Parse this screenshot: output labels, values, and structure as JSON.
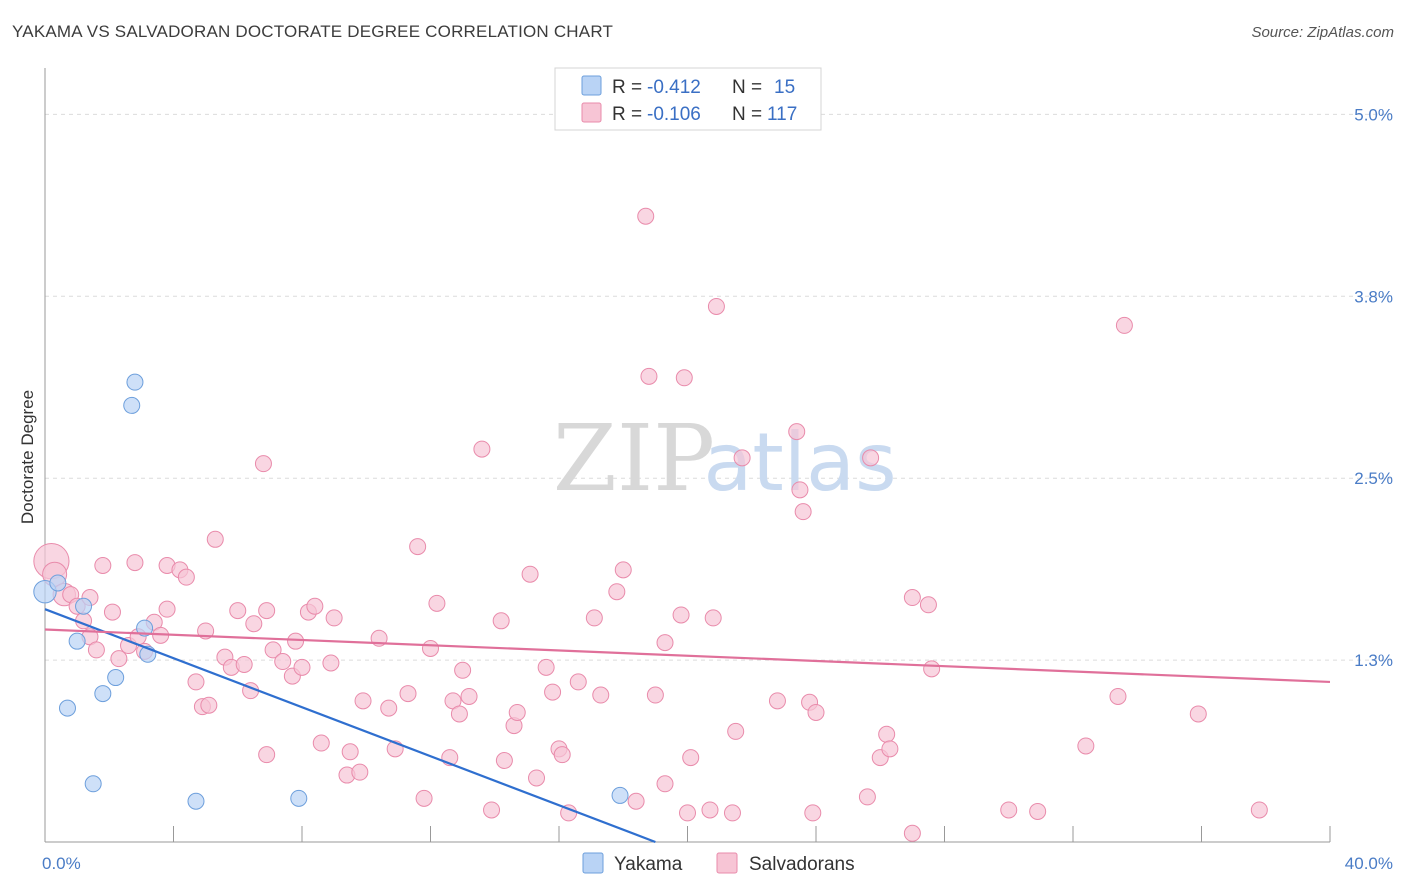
{
  "title": "YAKAMA VS SALVADORAN DOCTORATE DEGREE CORRELATION CHART",
  "source": "Source: ZipAtlas.com",
  "watermark": {
    "zip": "ZIP",
    "atlas": "atlas"
  },
  "colors": {
    "yakama_fill": "#b9d3f5",
    "yakama_stroke": "#6d9fdc",
    "yakama_line": "#2f6fcf",
    "salv_fill": "#f7c5d5",
    "salv_stroke": "#e98bab",
    "salv_line": "#e0709a",
    "grid": "#dcdcdc",
    "axis": "#999999",
    "tick_text": "#4a7cc6"
  },
  "legend": {
    "items": [
      {
        "name": "Yakama",
        "r_label": "R =",
        "r_value": "-0.412",
        "n_label": "N =",
        "n_value": "15"
      },
      {
        "name": "Salvadorans",
        "r_label": "R =",
        "r_value": "-0.106",
        "n_label": "N =",
        "n_value": "117"
      }
    ]
  },
  "chart_data": {
    "type": "scatter",
    "title": "YAKAMA VS SALVADORAN DOCTORATE DEGREE CORRELATION CHART",
    "xlabel": "",
    "ylabel": "Doctorate Degree",
    "xlim": [
      0,
      40
    ],
    "ylim": [
      0,
      5.25
    ],
    "x_tick_labels": [
      "0.0%",
      "40.0%"
    ],
    "y_ticks": [
      1.25,
      2.5,
      3.75,
      5.0
    ],
    "y_tick_labels": [
      "1.3%",
      "2.5%",
      "3.8%",
      "5.0%"
    ],
    "grid": true,
    "legend_position": "top-center",
    "series": [
      {
        "name": "Yakama",
        "r": -0.412,
        "n": 15,
        "trend": {
          "x0": 0.0,
          "y0": 1.6,
          "x1": 19.0,
          "y1": 0.0
        },
        "points": [
          [
            0.0,
            1.72,
            1.4
          ],
          [
            0.4,
            1.78,
            1
          ],
          [
            1.2,
            1.62,
            1
          ],
          [
            1.0,
            1.38,
            1
          ],
          [
            0.7,
            0.92,
            1
          ],
          [
            1.8,
            1.02,
            1
          ],
          [
            2.2,
            1.13,
            1
          ],
          [
            2.7,
            3.0,
            1
          ],
          [
            2.8,
            3.16,
            1
          ],
          [
            3.1,
            1.47,
            1
          ],
          [
            3.2,
            1.29,
            1
          ],
          [
            1.5,
            0.4,
            1
          ],
          [
            4.7,
            0.28,
            1
          ],
          [
            7.9,
            0.3,
            1
          ],
          [
            17.9,
            0.32,
            1
          ]
        ]
      },
      {
        "name": "Salvadorans",
        "r": -0.106,
        "n": 117,
        "trend": {
          "x0": 0.0,
          "y0": 1.46,
          "x1": 40.0,
          "y1": 1.1
        },
        "points": [
          [
            0.2,
            1.93,
            2.2
          ],
          [
            0.3,
            1.84,
            1.5
          ],
          [
            0.6,
            1.7,
            1.4
          ],
          [
            0.8,
            1.7,
            1
          ],
          [
            1.0,
            1.62,
            1
          ],
          [
            1.2,
            1.52,
            1
          ],
          [
            1.4,
            1.41,
            1
          ],
          [
            1.4,
            1.68,
            1
          ],
          [
            1.6,
            1.32,
            1
          ],
          [
            1.8,
            1.9,
            1
          ],
          [
            2.1,
            1.58,
            1
          ],
          [
            2.3,
            1.26,
            1
          ],
          [
            2.6,
            1.35,
            1
          ],
          [
            2.8,
            1.92,
            1
          ],
          [
            2.9,
            1.41,
            1
          ],
          [
            3.1,
            1.31,
            1
          ],
          [
            3.4,
            1.51,
            1
          ],
          [
            3.6,
            1.42,
            1
          ],
          [
            3.8,
            1.6,
            1
          ],
          [
            3.8,
            1.9,
            1
          ],
          [
            4.2,
            1.87,
            1
          ],
          [
            4.4,
            1.82,
            1
          ],
          [
            4.7,
            1.1,
            1
          ],
          [
            4.9,
            0.93,
            1
          ],
          [
            5.0,
            1.45,
            1
          ],
          [
            5.1,
            0.94,
            1
          ],
          [
            5.3,
            2.08,
            1
          ],
          [
            5.6,
            1.27,
            1
          ],
          [
            5.8,
            1.2,
            1
          ],
          [
            6.0,
            1.59,
            1
          ],
          [
            6.2,
            1.22,
            1
          ],
          [
            6.4,
            1.04,
            1
          ],
          [
            6.5,
            1.5,
            1
          ],
          [
            6.8,
            2.6,
            1
          ],
          [
            6.9,
            0.6,
            1
          ],
          [
            6.9,
            1.59,
            1
          ],
          [
            7.1,
            1.32,
            1
          ],
          [
            7.4,
            1.24,
            1
          ],
          [
            7.7,
            1.14,
            1
          ],
          [
            7.8,
            1.38,
            1
          ],
          [
            8.0,
            1.2,
            1
          ],
          [
            8.2,
            1.58,
            1
          ],
          [
            8.4,
            1.62,
            1
          ],
          [
            8.6,
            0.68,
            1
          ],
          [
            8.9,
            1.23,
            1
          ],
          [
            9.0,
            1.54,
            1
          ],
          [
            9.4,
            0.46,
            1
          ],
          [
            9.5,
            0.62,
            1
          ],
          [
            9.8,
            0.48,
            1
          ],
          [
            9.9,
            0.97,
            1
          ],
          [
            10.4,
            1.4,
            1
          ],
          [
            10.7,
            0.92,
            1
          ],
          [
            10.9,
            0.64,
            1
          ],
          [
            11.3,
            1.02,
            1
          ],
          [
            11.6,
            2.03,
            1
          ],
          [
            11.8,
            0.3,
            1
          ],
          [
            12.0,
            1.33,
            1
          ],
          [
            12.2,
            1.64,
            1
          ],
          [
            12.6,
            0.58,
            1
          ],
          [
            12.7,
            0.97,
            1
          ],
          [
            12.9,
            0.88,
            1
          ],
          [
            13.0,
            1.18,
            1
          ],
          [
            13.2,
            1.0,
            1
          ],
          [
            13.6,
            2.7,
            1
          ],
          [
            13.9,
            0.22,
            1
          ],
          [
            14.2,
            1.52,
            1
          ],
          [
            14.3,
            0.56,
            1
          ],
          [
            14.6,
            0.8,
            1
          ],
          [
            14.7,
            0.89,
            1
          ],
          [
            15.1,
            1.84,
            1
          ],
          [
            15.3,
            0.44,
            1
          ],
          [
            15.6,
            1.2,
            1
          ],
          [
            15.8,
            1.03,
            1
          ],
          [
            16.0,
            0.64,
            1
          ],
          [
            16.1,
            0.6,
            1
          ],
          [
            16.3,
            0.2,
            1
          ],
          [
            16.6,
            1.1,
            1
          ],
          [
            17.1,
            1.54,
            1
          ],
          [
            17.3,
            1.01,
            1
          ],
          [
            17.8,
            1.72,
            1
          ],
          [
            18.0,
            1.87,
            1
          ],
          [
            18.7,
            4.3,
            1
          ],
          [
            18.8,
            3.2,
            1
          ],
          [
            18.4,
            0.28,
            1
          ],
          [
            19.0,
            1.01,
            1
          ],
          [
            19.3,
            0.4,
            1
          ],
          [
            19.9,
            3.19,
            1
          ],
          [
            19.3,
            1.37,
            1
          ],
          [
            19.8,
            1.56,
            1
          ],
          [
            20.1,
            0.58,
            1
          ],
          [
            20.0,
            0.2,
            1
          ],
          [
            20.7,
            0.22,
            1
          ],
          [
            20.8,
            1.54,
            1
          ],
          [
            20.9,
            3.68,
            1
          ],
          [
            21.4,
            0.2,
            1
          ],
          [
            21.5,
            0.76,
            1
          ],
          [
            21.7,
            2.64,
            1
          ],
          [
            22.8,
            0.97,
            1
          ],
          [
            23.5,
            2.42,
            1
          ],
          [
            23.4,
            2.82,
            1
          ],
          [
            23.6,
            2.27,
            1
          ],
          [
            23.8,
            0.96,
            1
          ],
          [
            23.9,
            0.2,
            1
          ],
          [
            24.0,
            0.89,
            1
          ],
          [
            25.6,
            0.31,
            1
          ],
          [
            25.7,
            2.64,
            1
          ],
          [
            26.0,
            0.58,
            1
          ],
          [
            26.2,
            0.74,
            1
          ],
          [
            26.3,
            0.64,
            1
          ],
          [
            27.0,
            1.68,
            1
          ],
          [
            27.0,
            0.06,
            1
          ],
          [
            27.5,
            1.63,
            1
          ],
          [
            27.6,
            1.19,
            1
          ],
          [
            30.0,
            0.22,
            1
          ],
          [
            30.9,
            0.21,
            1
          ],
          [
            32.4,
            0.66,
            1
          ],
          [
            33.6,
            3.55,
            1
          ],
          [
            33.4,
            1.0,
            1
          ],
          [
            37.8,
            0.22,
            1
          ],
          [
            35.9,
            0.88,
            1
          ]
        ]
      }
    ]
  }
}
